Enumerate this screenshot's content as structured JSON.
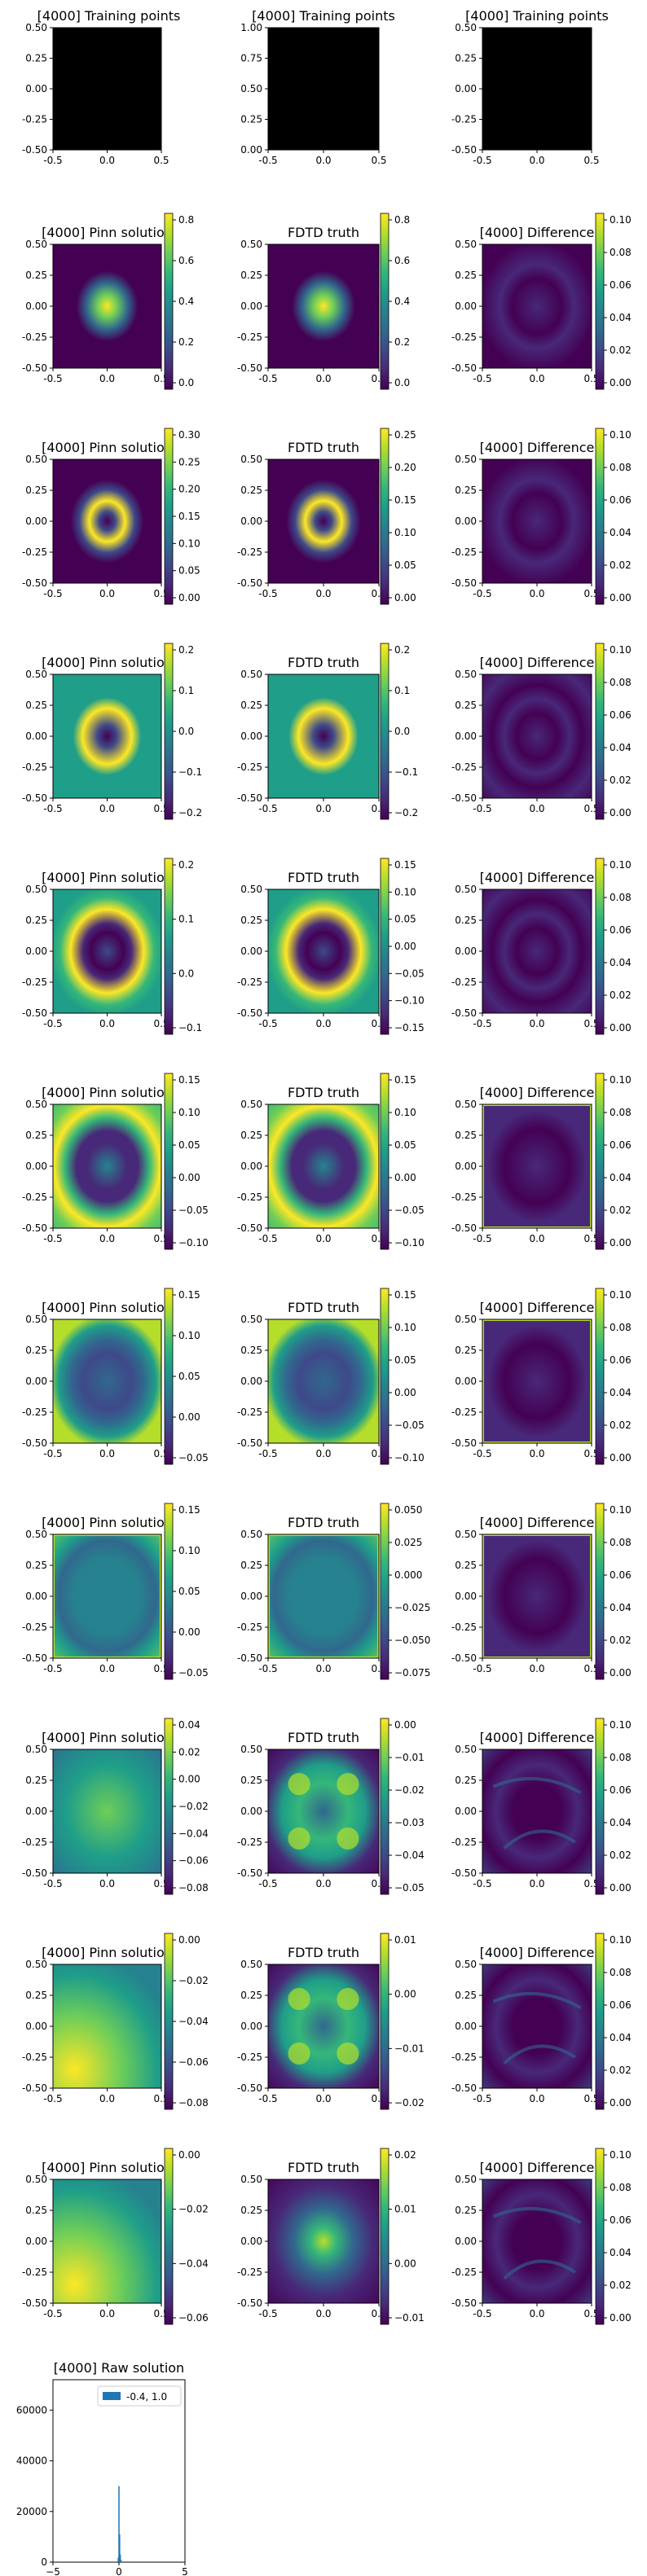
{
  "figure": {
    "iteration_label": "[4000]",
    "colors": {
      "viridis": [
        "#440154",
        "#482878",
        "#3e4989",
        "#31688e",
        "#26828e",
        "#1f9e89",
        "#35b779",
        "#6ece58",
        "#b5de2b",
        "#fde725"
      ],
      "training_points": "#000000",
      "histogram_bar": "#1f77b4"
    },
    "training_row": {
      "titles": [
        "[4000] Training points",
        "[4000] Training points",
        "[4000] Training points"
      ],
      "panels": [
        {
          "x_ticks": [
            "-0.5",
            "0.0",
            "0.5"
          ],
          "y_ticks": [
            "0.50",
            "0.25",
            "0.00",
            "-0.25",
            "-0.50"
          ]
        },
        {
          "x_ticks": [
            "-0.5",
            "0.0",
            "0.5"
          ],
          "y_ticks": [
            "1.00",
            "0.75",
            "0.50",
            "0.25",
            "0.00"
          ]
        },
        {
          "x_ticks": [
            "-0.5",
            "0.0",
            "0.5"
          ],
          "y_ticks": [
            "0.50",
            "0.25",
            "0.00",
            "-0.25",
            "-0.50"
          ]
        }
      ]
    },
    "comparison_titles": [
      "[4000] Pinn solution",
      "FDTD truth",
      "[4000] Difference"
    ],
    "axis_x_ticks": [
      "-0.5",
      "0.0",
      "0.5"
    ],
    "axis_y_ticks": [
      "0.50",
      "0.25",
      "0.00",
      "-0.25",
      "-0.50"
    ],
    "rows": [
      {
        "pinn": {
          "pattern": "blob",
          "ticks": [
            "0.8",
            "0.6",
            "0.4",
            "0.2",
            "0.0"
          ],
          "range": [
            -0.02,
            0.9
          ]
        },
        "fdtd": {
          "pattern": "blob",
          "ticks": [
            "0.8",
            "0.6",
            "0.4",
            "0.2",
            "0.0"
          ],
          "range": [
            -0.02,
            0.92
          ]
        },
        "diff": {
          "pattern": "petal",
          "ticks": [
            "0.10",
            "0.08",
            "0.06",
            "0.04",
            "0.02",
            "0.00"
          ]
        }
      },
      {
        "pinn": {
          "pattern": "ring",
          "ticks": [
            "0.30",
            "0.25",
            "0.20",
            "0.15",
            "0.10",
            "0.05",
            "0.00"
          ],
          "range": [
            -0.02,
            0.32
          ]
        },
        "fdtd": {
          "pattern": "ring",
          "ticks": [
            "0.25",
            "0.20",
            "0.15",
            "0.10",
            "0.05",
            "0.00"
          ],
          "range": [
            -0.01,
            0.29
          ]
        },
        "diff": {
          "pattern": "petal",
          "ticks": [
            "0.10",
            "0.08",
            "0.06",
            "0.04",
            "0.02",
            "0.00"
          ]
        }
      },
      {
        "pinn": {
          "pattern": "ring2",
          "ticks": [
            "0.2",
            "0.1",
            "0.0",
            "−0.1",
            "−0.2"
          ],
          "range": [
            -0.24,
            0.23
          ]
        },
        "fdtd": {
          "pattern": "ring2",
          "ticks": [
            "0.2",
            "0.1",
            "0.0",
            "−0.1",
            "−0.2"
          ],
          "range": [
            -0.25,
            0.23
          ]
        },
        "diff": {
          "pattern": "waves",
          "ticks": [
            "0.10",
            "0.08",
            "0.06",
            "0.04",
            "0.02",
            "0.00"
          ]
        }
      },
      {
        "pinn": {
          "pattern": "ring3",
          "ticks": [
            "0.2",
            "0.1",
            "0.0",
            "−0.1"
          ],
          "range": [
            -0.16,
            0.21
          ]
        },
        "fdtd": {
          "pattern": "ring3",
          "ticks": [
            "0.15",
            "0.10",
            "0.05",
            "0.00",
            "−0.05",
            "−0.10",
            "−0.15"
          ],
          "range": [
            -0.16,
            0.18
          ]
        },
        "diff": {
          "pattern": "waves",
          "ticks": [
            "0.10",
            "0.08",
            "0.06",
            "0.04",
            "0.02",
            "0.00"
          ]
        }
      },
      {
        "pinn": {
          "pattern": "ring4",
          "ticks": [
            "0.15",
            "0.10",
            "0.05",
            "0.00",
            "−0.05",
            "−0.10"
          ],
          "range": [
            -0.12,
            0.17
          ]
        },
        "fdtd": {
          "pattern": "ring4",
          "ticks": [
            "0.15",
            "0.10",
            "0.05",
            "0.00",
            "−0.05",
            "−0.10"
          ],
          "range": [
            -0.12,
            0.16
          ]
        },
        "diff": {
          "pattern": "frame",
          "ticks": [
            "0.10",
            "0.08",
            "0.06",
            "0.04",
            "0.02",
            "0.00"
          ]
        }
      },
      {
        "pinn": {
          "pattern": "ring5",
          "ticks": [
            "0.15",
            "0.10",
            "0.05",
            "0.00",
            "−0.05"
          ],
          "range": [
            -0.07,
            0.16
          ]
        },
        "fdtd": {
          "pattern": "ring5",
          "ticks": [
            "0.15",
            "0.10",
            "0.05",
            "0.00",
            "−0.05",
            "−0.10"
          ],
          "range": [
            -0.11,
            0.16
          ]
        },
        "diff": {
          "pattern": "frame",
          "ticks": [
            "0.10",
            "0.08",
            "0.06",
            "0.04",
            "0.02",
            "0.00"
          ]
        }
      },
      {
        "pinn": {
          "pattern": "soft",
          "ticks": [
            "0.15",
            "0.10",
            "0.05",
            "0.00",
            "−0.05"
          ],
          "range": [
            -0.07,
            0.16
          ]
        },
        "fdtd": {
          "pattern": "soft",
          "ticks": [
            "0.050",
            "0.025",
            "0.000",
            "−0.025",
            "−0.050",
            "−0.075"
          ],
          "range": [
            -0.085,
            0.06
          ]
        },
        "diff": {
          "pattern": "frame",
          "ticks": [
            "0.10",
            "0.08",
            "0.06",
            "0.04",
            "0.02",
            "0.00"
          ]
        }
      },
      {
        "pinn": {
          "pattern": "tilt",
          "ticks": [
            "0.04",
            "0.02",
            "0.00",
            "−0.02",
            "−0.04",
            "−0.06",
            "−0.08"
          ],
          "range": [
            -0.09,
            0.045
          ]
        },
        "fdtd": {
          "pattern": "quad",
          "ticks": [
            "0.00",
            "−0.01",
            "−0.02",
            "−0.03",
            "−0.04",
            "−0.05"
          ],
          "range": [
            -0.055,
            0.002
          ]
        },
        "diff": {
          "pattern": "cells",
          "ticks": [
            "0.10",
            "0.08",
            "0.06",
            "0.04",
            "0.02",
            "0.00"
          ]
        }
      },
      {
        "pinn": {
          "pattern": "corner",
          "ticks": [
            "0.00",
            "−0.02",
            "−0.04",
            "−0.06",
            "−0.08"
          ],
          "range": [
            -0.09,
            0.01
          ]
        },
        "fdtd": {
          "pattern": "quad",
          "ticks": [
            "0.01",
            "0.00",
            "−0.01",
            "−0.02"
          ],
          "range": [
            -0.025,
            0.012
          ]
        },
        "diff": {
          "pattern": "cells",
          "ticks": [
            "0.10",
            "0.08",
            "0.06",
            "0.04",
            "0.02",
            "0.00"
          ]
        }
      },
      {
        "pinn": {
          "pattern": "corner",
          "ticks": [
            "0.00",
            "−0.02",
            "−0.04",
            "−0.06"
          ],
          "range": [
            -0.07,
            0.005
          ]
        },
        "fdtd": {
          "pattern": "spot",
          "ticks": [
            "0.02",
            "0.01",
            "0.00",
            "−0.01"
          ],
          "range": [
            -0.015,
            0.025
          ]
        },
        "diff": {
          "pattern": "cells",
          "ticks": [
            "0.10",
            "0.08",
            "0.06",
            "0.04",
            "0.02",
            "0.00"
          ]
        }
      }
    ]
  },
  "chart_data": {
    "type": "bar",
    "title": "[4000] Raw solution",
    "xlim": [
      -5,
      5
    ],
    "ylim": [
      0,
      72000
    ],
    "x_ticks": [
      "−5",
      "0",
      "5"
    ],
    "y_ticks": [
      "60000",
      "40000",
      "20000",
      "0"
    ],
    "legend": {
      "label": "-0.4, 1.0",
      "placement": "top-right"
    },
    "bins": [
      {
        "x": -0.1,
        "count": 400
      },
      {
        "x": -0.05,
        "count": 1800
      },
      {
        "x": 0.0,
        "count": 30000
      },
      {
        "x": 0.05,
        "count": 11000
      },
      {
        "x": 0.1,
        "count": 3000
      },
      {
        "x": 0.15,
        "count": 900
      },
      {
        "x": 0.2,
        "count": 300
      }
    ]
  }
}
